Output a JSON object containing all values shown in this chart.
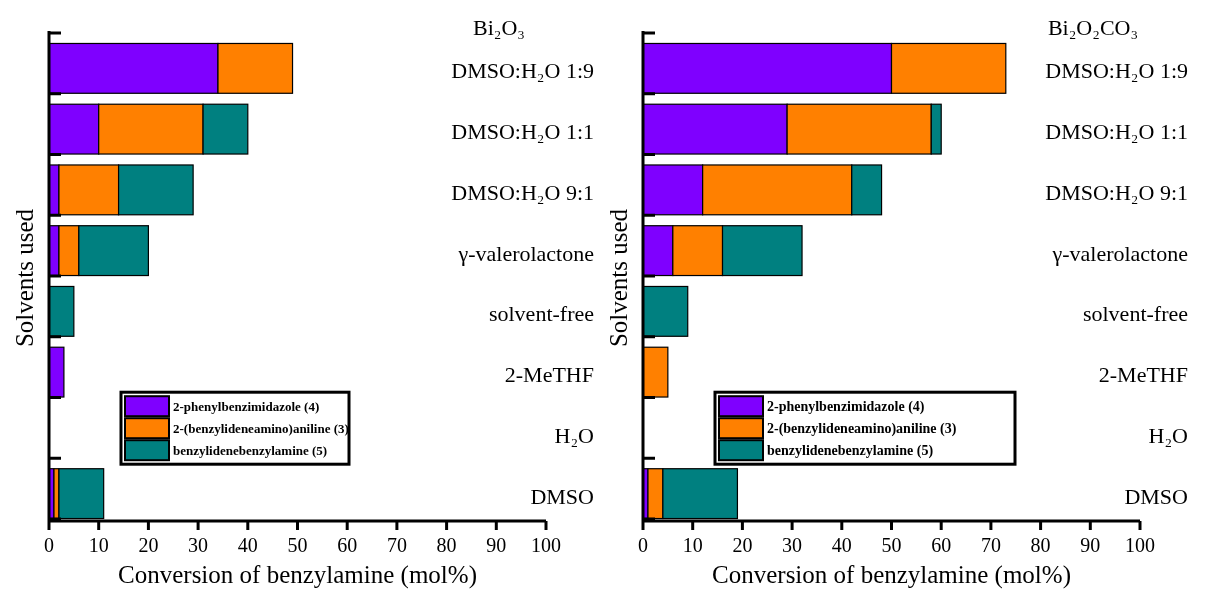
{
  "chart_data": [
    {
      "type": "bar",
      "orientation": "horizontal",
      "stacked": true,
      "title": "Bi₂O₃",
      "xlabel": "Conversion of benzylamine (mol%)",
      "ylabel": "Solvents used",
      "categories": [
        "DMSO:H₂O 1:9",
        "DMSO:H₂O 1:1",
        "DMSO:H₂O 9:1",
        "γ-valerolactone",
        "solvent-free",
        "2-MeTHF",
        "H₂O",
        "DMSO"
      ],
      "series": [
        {
          "name": "2-phenylbenzimidazole (4)",
          "color": "#7f00ff",
          "values": [
            34,
            10,
            2,
            2,
            0,
            3,
            0,
            1
          ]
        },
        {
          "name": "2-(benzylideneamino)aniline (3)",
          "color": "#ff8000",
          "values": [
            15,
            21,
            12,
            4,
            0,
            0,
            0,
            1
          ]
        },
        {
          "name": "benzylidenebenzylamine (5)",
          "color": "#008080",
          "values": [
            0,
            9,
            15,
            14,
            5,
            0,
            0,
            9
          ]
        }
      ],
      "xlim": [
        0,
        100
      ],
      "xticks": [
        0,
        10,
        20,
        30,
        40,
        50,
        60,
        70,
        80,
        90,
        100
      ],
      "legend": "bottom left",
      "grid": false
    },
    {
      "type": "bar",
      "orientation": "horizontal",
      "stacked": true,
      "title": "Bi₂O₂CO₃",
      "xlabel": "Conversion of benzylamine (mol%)",
      "ylabel": "Solvents used",
      "categories": [
        "DMSO:H₂O 1:9",
        "DMSO:H₂O 1:1",
        "DMSO:H₂O 9:1",
        "γ-valerolactone",
        "solvent-free",
        "2-MeTHF",
        "H₂O",
        "DMSO"
      ],
      "series": [
        {
          "name": "2-phenylbenzimidazole (4)",
          "color": "#7f00ff",
          "values": [
            50,
            29,
            12,
            6,
            0,
            0,
            0,
            1
          ]
        },
        {
          "name": "2-(benzylideneamino)aniline (3)",
          "color": "#ff8000",
          "values": [
            23,
            29,
            30,
            10,
            0,
            5,
            0,
            3
          ]
        },
        {
          "name": "benzylidenebenzylamine (5)",
          "color": "#008080",
          "values": [
            0,
            2,
            6,
            16,
            9,
            0,
            0,
            15
          ]
        }
      ],
      "xlim": [
        0,
        100
      ],
      "xticks": [
        0,
        10,
        20,
        30,
        40,
        50,
        60,
        70,
        80,
        90,
        100
      ],
      "legend": "bottom left",
      "grid": false
    }
  ]
}
